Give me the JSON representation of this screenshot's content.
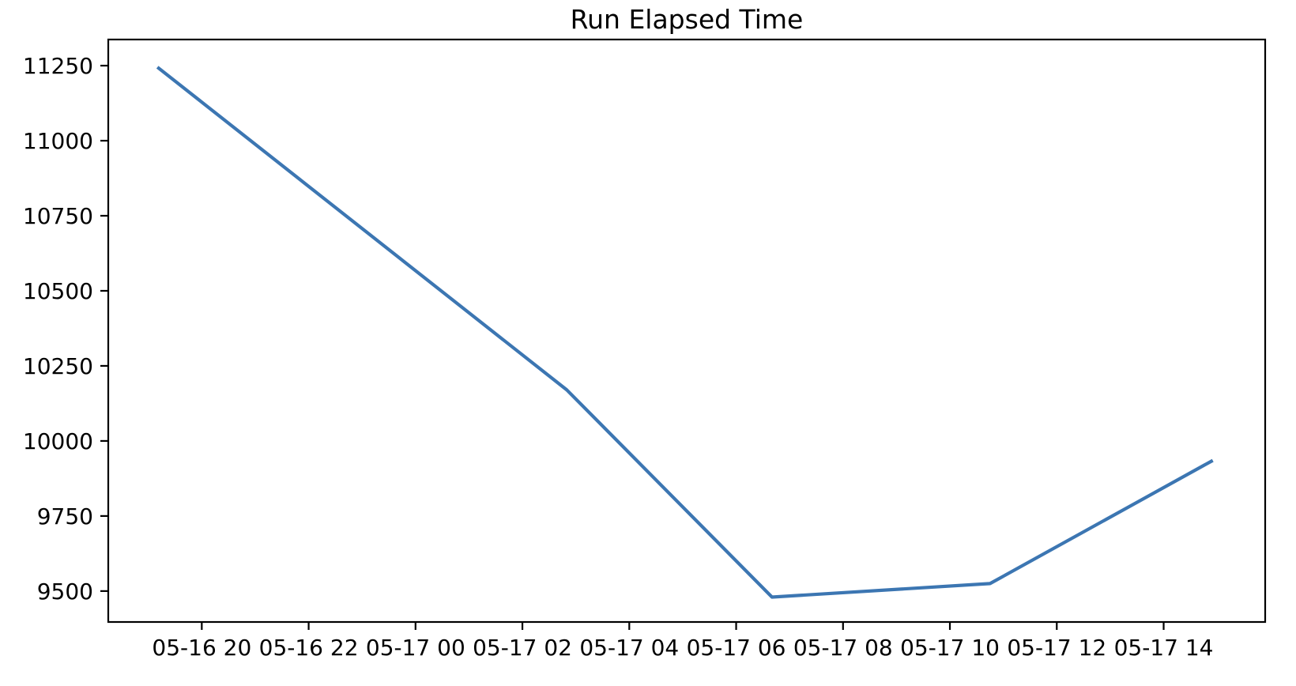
{
  "chart_data": {
    "type": "line",
    "title": "Run Elapsed Time",
    "xlabel": "",
    "ylabel": "",
    "grid": false,
    "legend": false,
    "line_color": "#3c76b2",
    "axis_color": "#000000",
    "x_unit": "hours since 05-16 00:00",
    "xlim_hours": [
      18.25,
      39.9
    ],
    "ylim": [
      9397,
      11337
    ],
    "x_ticks": [
      {
        "pos": 20,
        "label": "05-16 20"
      },
      {
        "pos": 22,
        "label": "05-16 22"
      },
      {
        "pos": 24,
        "label": "05-17 00"
      },
      {
        "pos": 26,
        "label": "05-17 02"
      },
      {
        "pos": 28,
        "label": "05-17 04"
      },
      {
        "pos": 30,
        "label": "05-17 06"
      },
      {
        "pos": 32,
        "label": "05-17 08"
      },
      {
        "pos": 34,
        "label": "05-17 10"
      },
      {
        "pos": 36,
        "label": "05-17 12"
      },
      {
        "pos": 38,
        "label": "05-17 14"
      }
    ],
    "y_ticks": [
      9500,
      9750,
      10000,
      10250,
      10500,
      10750,
      11000,
      11250
    ],
    "series": [
      {
        "name": "run-elapsed-time",
        "x_hours": [
          19.17,
          26.83,
          30.67,
          34.75,
          38.92
        ],
        "x_times": [
          "05-16 19:10",
          "05-17 02:50",
          "05-17 06:40",
          "05-17 10:45",
          "05-17 14:55"
        ],
        "values": [
          11245,
          10170,
          9480,
          9525,
          9935
        ]
      }
    ]
  }
}
